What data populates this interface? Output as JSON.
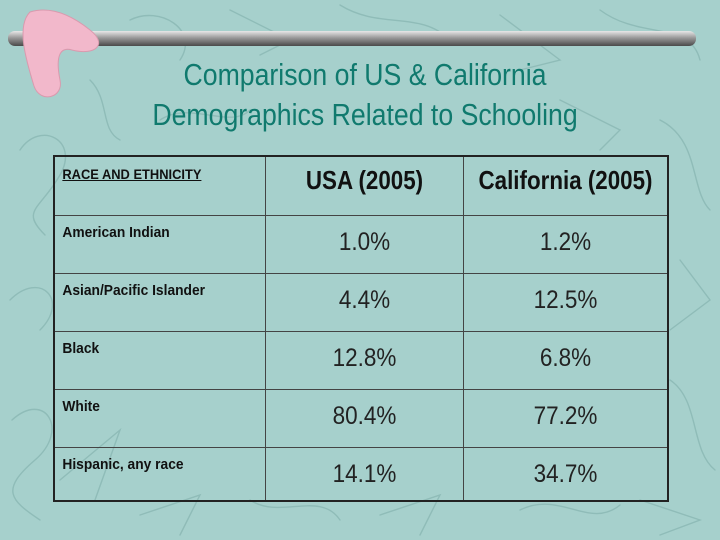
{
  "slide": {
    "title_line1": "Comparison of US & California",
    "title_line2": "Demographics Related to Schooling"
  },
  "table": {
    "headers": [
      "RACE AND ETHNICITY",
      "USA (2005)",
      "California (2005)"
    ],
    "rows": [
      {
        "label": "American Indian",
        "usa": "1.0%",
        "california": "1.2%"
      },
      {
        "label": "Asian/Pacific Islander",
        "usa": "4.4%",
        "california": "12.5%"
      },
      {
        "label": "Black",
        "usa": "12.8%",
        "california": "6.8%"
      },
      {
        "label": "White",
        "usa": "80.4%",
        "california": "77.2%"
      },
      {
        "label": "Hispanic, any race",
        "usa": "14.1%",
        "california": "34.7%"
      }
    ]
  },
  "colors": {
    "background": "#a6d0cc",
    "title": "#107a6e",
    "boomerang_fill": "#f2b8cb",
    "squiggle_stroke": "#8fbcb8"
  }
}
